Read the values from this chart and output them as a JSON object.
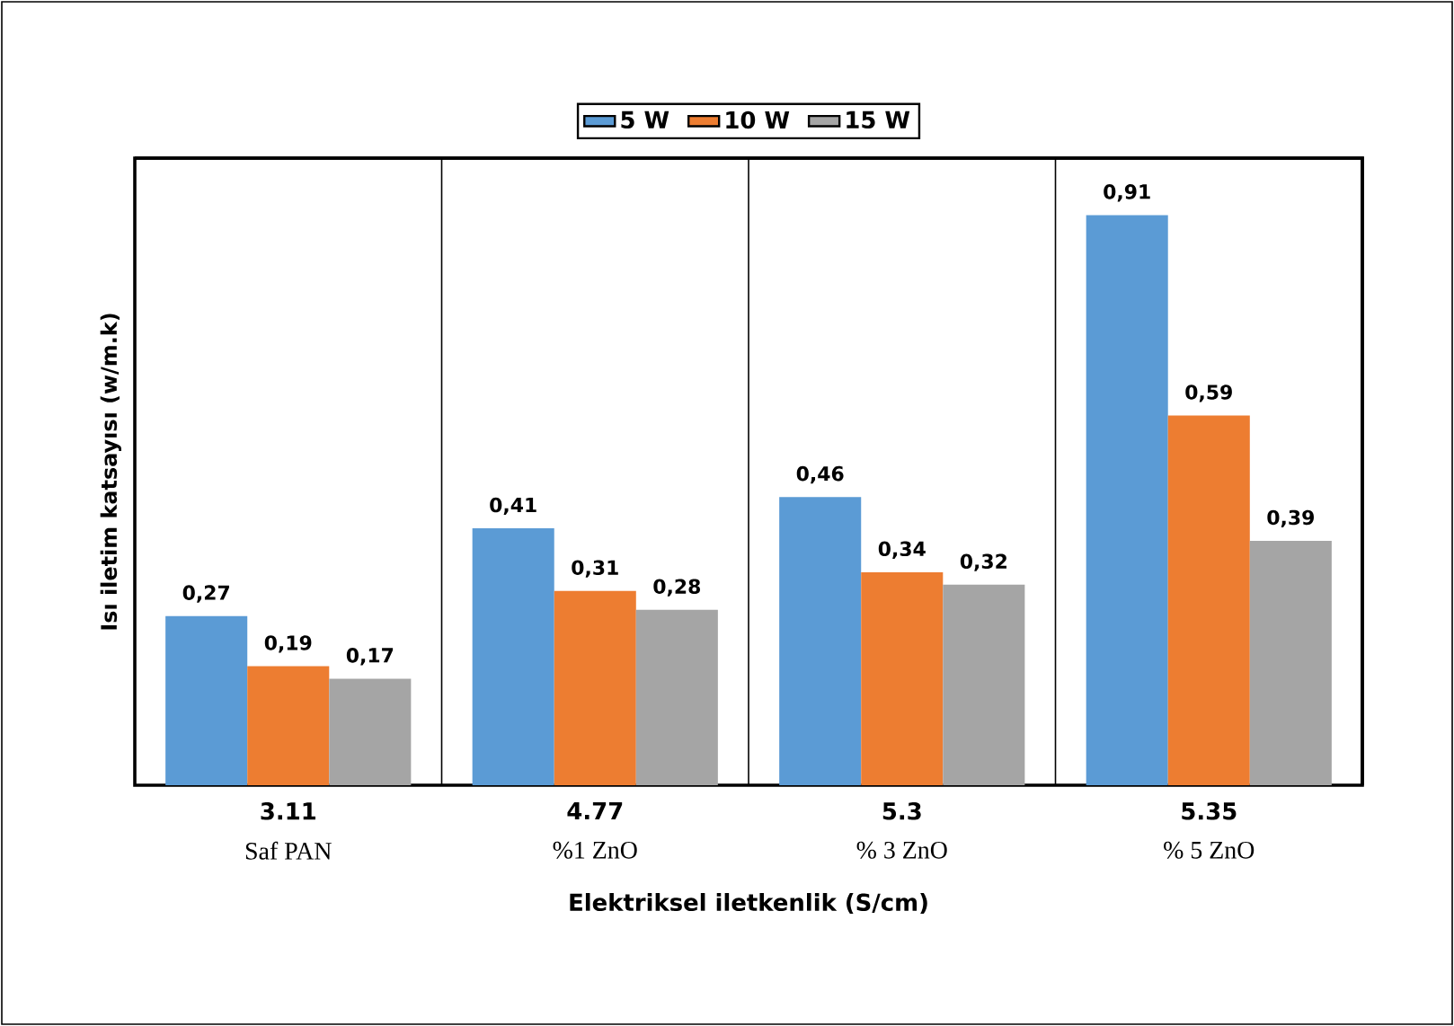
{
  "chart_data": {
    "type": "bar",
    "xlabel": "Elektriksel iletkenlik (S/cm)",
    "ylabel": "Isı  iletim katsayısı (w/m.k)",
    "categories": [
      "3.11",
      "4.77",
      "5.3",
      "5.35"
    ],
    "series": [
      {
        "name": "5 W",
        "color": "#5b9bd5",
        "values": [
          0.27,
          0.41,
          0.46,
          0.91
        ],
        "value_labels": [
          "0,27",
          "0,41",
          "0,46",
          "0,91"
        ]
      },
      {
        "name": "10 W",
        "color": "#ed7d31",
        "values": [
          0.19,
          0.31,
          0.34,
          0.59
        ],
        "value_labels": [
          "0,19",
          "0,31",
          "0,34",
          "0,59"
        ]
      },
      {
        "name": "15 W",
        "color": "#a5a5a5",
        "values": [
          0.17,
          0.28,
          0.32,
          0.39
        ],
        "value_labels": [
          "0,17",
          "0,28",
          "0,32",
          "0,39"
        ]
      }
    ],
    "annotations": [
      "Saf PAN",
      "%1 ZnO",
      "% 3 ZnO",
      "% 5 ZnO"
    ],
    "legend": "top",
    "grid": false
  }
}
